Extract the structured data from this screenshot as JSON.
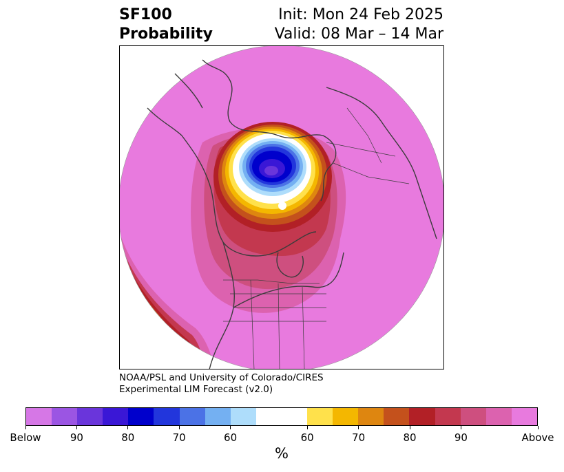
{
  "title": {
    "variable": "SF100",
    "subtitle": "Probability",
    "init": "Init: Mon 24 Feb 2025",
    "valid": "Valid: 08 Mar – 14 Mar"
  },
  "credit": {
    "line1": "NOAA/PSL and University of Colorado/CIRES",
    "line2": "Experimental LIM Forecast (v2.0)"
  },
  "colorbar": {
    "unit": "%",
    "colors": [
      "#d677e6",
      "#9b55e3",
      "#6a35db",
      "#3a17d6",
      "#0000cc",
      "#2236dc",
      "#4b72e6",
      "#74b0f2",
      "#aeddfb",
      "#ffffff",
      "#ffe14b",
      "#f4b700",
      "#de8610",
      "#c4511c",
      "#b22026",
      "#c3384f",
      "#ce4f7f",
      "#dc62af",
      "#e87ade"
    ],
    "widths": [
      1,
      1,
      1,
      1,
      1,
      1,
      1,
      1,
      1,
      2,
      1,
      1,
      1,
      1,
      1,
      1,
      1,
      1,
      1
    ],
    "tick_labels": [
      "Below",
      "90",
      "80",
      "70",
      "60",
      "60",
      "70",
      "80",
      "90",
      "Above"
    ]
  }
}
